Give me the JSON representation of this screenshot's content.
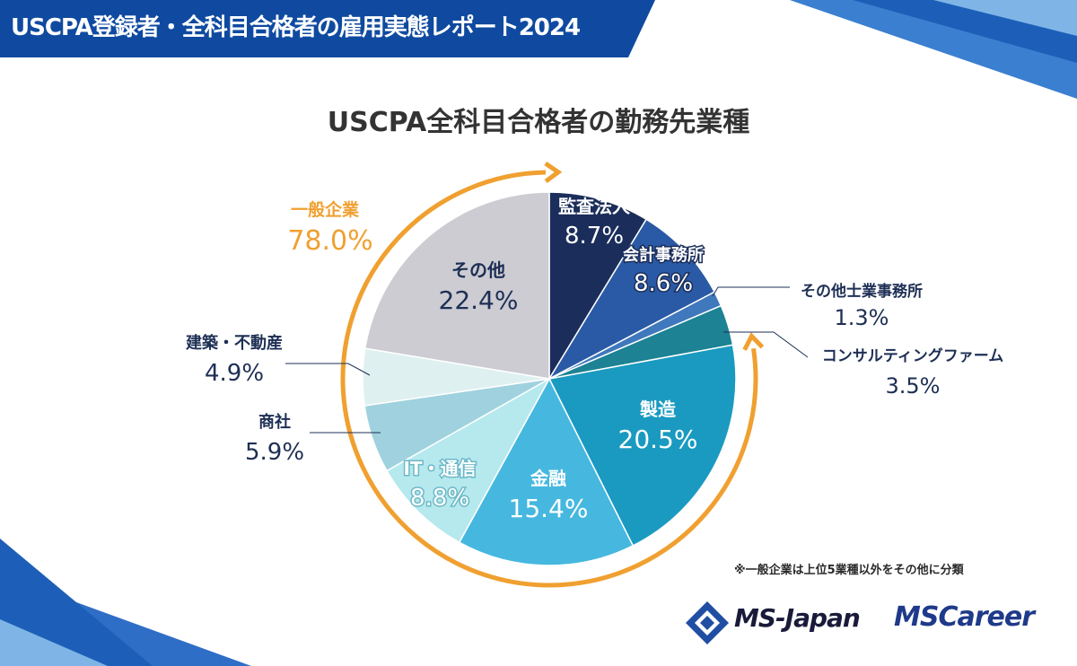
{
  "header": {
    "title": "USCPA登録者・全科目合格者の雇用実態レポート2024"
  },
  "colors": {
    "banner": "#0f4aa0",
    "accent_orange": "#f0a030",
    "label_dark": "#1e2f55"
  },
  "chart_data": {
    "type": "pie",
    "title": "USCPA全科目合格者の勤務先業種",
    "unit": "%",
    "start": "12 o'clock, clockwise",
    "slices": [
      {
        "name": "監査法人",
        "value": 8.7,
        "label": "8.7%",
        "color": "#1b2d5a"
      },
      {
        "name": "会計事務所",
        "value": 8.6,
        "label": "8.6%",
        "color": "#2a5aa5"
      },
      {
        "name": "その他士業事務所",
        "value": 1.3,
        "label": "1.3%",
        "color": "#3f78bc"
      },
      {
        "name": "コンサルティングファーム",
        "value": 3.5,
        "label": "3.5%",
        "color": "#1c8294"
      },
      {
        "name": "製造",
        "value": 20.5,
        "label": "20.5%",
        "color": "#1a9ac0"
      },
      {
        "name": "金融",
        "value": 15.4,
        "label": "15.4%",
        "color": "#46b8e0"
      },
      {
        "name": "IT・通信",
        "value": 8.8,
        "label": "8.8%",
        "color": "#b5e9ee"
      },
      {
        "name": "商社",
        "value": 5.9,
        "label": "5.9%",
        "color": "#9fd2de"
      },
      {
        "name": "建築・不動産",
        "value": 4.9,
        "label": "4.9%",
        "color": "#dff0f0"
      },
      {
        "name": "その他",
        "value": 22.4,
        "label": "22.4%",
        "color": "#ccccd2"
      }
    ],
    "group": {
      "name": "一般企業",
      "value": 78.0,
      "label": "78.0%"
    }
  },
  "footer": {
    "note": "※一般企業は上位5業種以外をその他に分類",
    "logo1": "MS-Japan",
    "logo2": "MSCareer"
  }
}
